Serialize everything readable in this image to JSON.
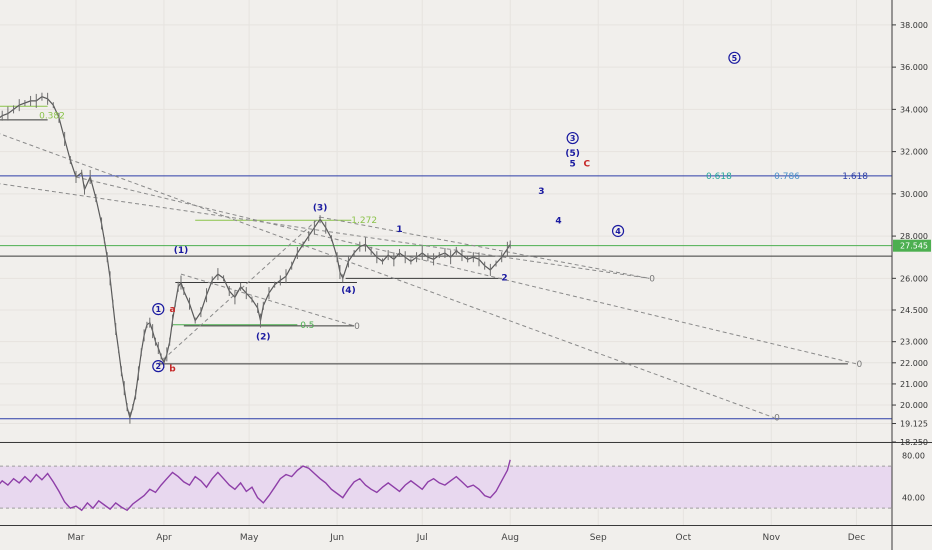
{
  "chart_data": {
    "type": "line",
    "title": "",
    "price_axis": {
      "ticks": [
        "38.000",
        "36.000",
        "34.000",
        "32.000",
        "30.000",
        "28.000",
        "26.000",
        "24.500",
        "23.000",
        "22.000",
        "21.000",
        "20.000",
        "19.125",
        "18.250"
      ],
      "current_price": "27.545",
      "ylim": [
        18.25,
        38.8
      ]
    },
    "rsi_axis": {
      "ticks": [
        "80.00",
        "40.00"
      ],
      "band": [
        30,
        70
      ],
      "ylim": [
        14,
        92
      ]
    },
    "time_axis": {
      "labels": [
        "Mar",
        "Apr",
        "May",
        "Jun",
        "Jul",
        "Aug",
        "Sep",
        "Oct",
        "Nov",
        "Dec"
      ],
      "label_days": [
        0,
        31,
        61,
        92,
        122,
        153,
        184,
        214,
        245,
        275
      ]
    },
    "price_series": [
      [
        -28,
        33.5
      ],
      [
        -26,
        33.7
      ],
      [
        -24,
        33.8
      ],
      [
        -22,
        34.0
      ],
      [
        -20,
        34.2
      ],
      [
        -18,
        34.3
      ],
      [
        -16,
        34.4
      ],
      [
        -14,
        34.4
      ],
      [
        -12,
        34.6
      ],
      [
        -10,
        34.5
      ],
      [
        -8,
        34.2
      ],
      [
        -6,
        33.6
      ],
      [
        -4,
        32.6
      ],
      [
        -2,
        31.6
      ],
      [
        0,
        30.8
      ],
      [
        2,
        31.0
      ],
      [
        3,
        30.2
      ],
      [
        5,
        30.8
      ],
      [
        7,
        29.8
      ],
      [
        9,
        28.6
      ],
      [
        10,
        27.8
      ],
      [
        11,
        27.0
      ],
      [
        12,
        26.0
      ],
      [
        13,
        24.8
      ],
      [
        14,
        23.6
      ],
      [
        15,
        22.6
      ],
      [
        16,
        21.6
      ],
      [
        17,
        20.8
      ],
      [
        18,
        19.9
      ],
      [
        19,
        19.4
      ],
      [
        20,
        19.9
      ],
      [
        21,
        20.5
      ],
      [
        22,
        21.5
      ],
      [
        23,
        22.5
      ],
      [
        24,
        23.3
      ],
      [
        25,
        23.8
      ],
      [
        26,
        23.9
      ],
      [
        27,
        23.5
      ],
      [
        28,
        23.0
      ],
      [
        29,
        22.7
      ],
      [
        30,
        22.3
      ],
      [
        31,
        22.0
      ],
      [
        32,
        22.4
      ],
      [
        33,
        23.0
      ],
      [
        34,
        24.0
      ],
      [
        35,
        24.8
      ],
      [
        36,
        25.6
      ],
      [
        37,
        25.8
      ],
      [
        38,
        25.4
      ],
      [
        40,
        24.8
      ],
      [
        42,
        24.0
      ],
      [
        44,
        24.4
      ],
      [
        46,
        25.2
      ],
      [
        48,
        25.9
      ],
      [
        50,
        26.2
      ],
      [
        52,
        26.0
      ],
      [
        54,
        25.4
      ],
      [
        56,
        25.1
      ],
      [
        58,
        25.6
      ],
      [
        60,
        25.3
      ],
      [
        62,
        25.0
      ],
      [
        64,
        24.6
      ],
      [
        65,
        24.0
      ],
      [
        66,
        24.7
      ],
      [
        68,
        25.3
      ],
      [
        70,
        25.7
      ],
      [
        72,
        25.9
      ],
      [
        74,
        26.1
      ],
      [
        76,
        26.6
      ],
      [
        78,
        27.2
      ],
      [
        80,
        27.6
      ],
      [
        82,
        28.0
      ],
      [
        84,
        28.4
      ],
      [
        86,
        28.8
      ],
      [
        88,
        28.4
      ],
      [
        90,
        27.9
      ],
      [
        92,
        27.0
      ],
      [
        93,
        26.3
      ],
      [
        94,
        26.0
      ],
      [
        96,
        26.8
      ],
      [
        98,
        27.2
      ],
      [
        100,
        27.5
      ],
      [
        102,
        27.6
      ],
      [
        104,
        27.3
      ],
      [
        106,
        27.0
      ],
      [
        108,
        26.8
      ],
      [
        110,
        27.1
      ],
      [
        112,
        26.9
      ],
      [
        114,
        27.2
      ],
      [
        116,
        27.0
      ],
      [
        118,
        26.8
      ],
      [
        120,
        27.0
      ],
      [
        122,
        27.2
      ],
      [
        124,
        27.0
      ],
      [
        126,
        26.9
      ],
      [
        128,
        27.1
      ],
      [
        130,
        27.2
      ],
      [
        132,
        27.0
      ],
      [
        134,
        27.3
      ],
      [
        136,
        27.1
      ],
      [
        138,
        26.9
      ],
      [
        140,
        27.0
      ],
      [
        142,
        26.9
      ],
      [
        144,
        26.6
      ],
      [
        146,
        26.4
      ],
      [
        148,
        26.7
      ],
      [
        150,
        27.0
      ],
      [
        152,
        27.4
      ],
      [
        153,
        27.6
      ]
    ],
    "rsi_series": [
      [
        -28,
        50
      ],
      [
        -26,
        56
      ],
      [
        -24,
        52
      ],
      [
        -22,
        58
      ],
      [
        -20,
        54
      ],
      [
        -18,
        60
      ],
      [
        -16,
        55
      ],
      [
        -14,
        62
      ],
      [
        -12,
        57
      ],
      [
        -10,
        63
      ],
      [
        -8,
        55
      ],
      [
        -6,
        46
      ],
      [
        -4,
        36
      ],
      [
        -2,
        30
      ],
      [
        0,
        32
      ],
      [
        2,
        28
      ],
      [
        4,
        35
      ],
      [
        6,
        30
      ],
      [
        8,
        37
      ],
      [
        10,
        33
      ],
      [
        12,
        29
      ],
      [
        14,
        35
      ],
      [
        16,
        31
      ],
      [
        18,
        28
      ],
      [
        20,
        34
      ],
      [
        22,
        38
      ],
      [
        24,
        42
      ],
      [
        26,
        48
      ],
      [
        28,
        45
      ],
      [
        30,
        52
      ],
      [
        32,
        58
      ],
      [
        34,
        64
      ],
      [
        36,
        60
      ],
      [
        38,
        55
      ],
      [
        40,
        52
      ],
      [
        42,
        60
      ],
      [
        44,
        56
      ],
      [
        46,
        50
      ],
      [
        48,
        58
      ],
      [
        50,
        64
      ],
      [
        52,
        58
      ],
      [
        54,
        52
      ],
      [
        56,
        48
      ],
      [
        58,
        54
      ],
      [
        60,
        46
      ],
      [
        62,
        50
      ],
      [
        64,
        40
      ],
      [
        66,
        35
      ],
      [
        68,
        42
      ],
      [
        70,
        50
      ],
      [
        72,
        58
      ],
      [
        74,
        62
      ],
      [
        76,
        60
      ],
      [
        78,
        66
      ],
      [
        80,
        70
      ],
      [
        82,
        68
      ],
      [
        84,
        63
      ],
      [
        86,
        58
      ],
      [
        88,
        54
      ],
      [
        90,
        48
      ],
      [
        92,
        44
      ],
      [
        94,
        40
      ],
      [
        96,
        48
      ],
      [
        98,
        55
      ],
      [
        100,
        58
      ],
      [
        102,
        52
      ],
      [
        104,
        48
      ],
      [
        106,
        45
      ],
      [
        108,
        50
      ],
      [
        110,
        54
      ],
      [
        112,
        50
      ],
      [
        114,
        46
      ],
      [
        116,
        52
      ],
      [
        118,
        56
      ],
      [
        120,
        52
      ],
      [
        122,
        48
      ],
      [
        124,
        55
      ],
      [
        126,
        58
      ],
      [
        128,
        54
      ],
      [
        130,
        52
      ],
      [
        132,
        56
      ],
      [
        134,
        60
      ],
      [
        136,
        55
      ],
      [
        138,
        50
      ],
      [
        140,
        52
      ],
      [
        142,
        48
      ],
      [
        144,
        42
      ],
      [
        146,
        40
      ],
      [
        148,
        46
      ],
      [
        150,
        56
      ],
      [
        152,
        66
      ],
      [
        153,
        76
      ]
    ],
    "horizontal_levels": [
      {
        "price": 30.85,
        "color": "#2c3ea8"
      },
      {
        "price": 27.05,
        "color": "#3a3a3a"
      },
      {
        "price": 27.55,
        "color": "#4caf50"
      },
      {
        "price": 19.35,
        "color": "#2c3ea8"
      }
    ],
    "fib_labels": [
      {
        "text": "0.618",
        "day": 222,
        "price": 30.85,
        "color": "#26a69a"
      },
      {
        "text": "0.786",
        "day": 246,
        "price": 30.85,
        "color": "#4a90c8"
      },
      {
        "text": "1.618",
        "day": 270,
        "price": 30.85,
        "color": "#2c3ea8"
      },
      {
        "text": "0.382",
        "day": -13,
        "price": 33.7,
        "color": "#8bc34a"
      },
      {
        "text": "1.272",
        "day": 97,
        "price": 28.75,
        "color": "#8bc34a"
      },
      {
        "text": "0.5",
        "day": 79,
        "price": 23.8,
        "color": "#4caf50"
      }
    ],
    "zero_labels": [
      {
        "text": "0",
        "day": 202,
        "price": 26.0
      },
      {
        "text": "0",
        "day": 98,
        "price": 23.75
      },
      {
        "text": "0",
        "day": 275,
        "price": 21.95
      },
      {
        "text": "0",
        "day": 246,
        "price": 19.4
      }
    ],
    "wave_labels": [
      {
        "text": "1",
        "day": 29,
        "price": 24.4,
        "color": "#1a1aa0",
        "circled": true
      },
      {
        "text": "a",
        "day": 34,
        "price": 24.4,
        "color": "#c62828",
        "circled": false
      },
      {
        "text": "2",
        "day": 29,
        "price": 21.7,
        "color": "#1a1aa0",
        "circled": true
      },
      {
        "text": "b",
        "day": 34,
        "price": 21.6,
        "color": "#c62828",
        "circled": false
      },
      {
        "text": "(1)",
        "day": 37,
        "price": 27.2,
        "color": "#1a1aa0",
        "circled": false
      },
      {
        "text": "(2)",
        "day": 66,
        "price": 23.1,
        "color": "#1a1aa0",
        "circled": false
      },
      {
        "text": "(3)",
        "day": 86,
        "price": 29.2,
        "color": "#1a1aa0",
        "circled": false
      },
      {
        "text": "(4)",
        "day": 96,
        "price": 25.3,
        "color": "#1a1aa0",
        "circled": false
      },
      {
        "text": "1",
        "day": 114,
        "price": 28.2,
        "color": "#1a1aa0",
        "circled": false
      },
      {
        "text": "2",
        "day": 151,
        "price": 25.9,
        "color": "#1a1aa0",
        "circled": false
      },
      {
        "text": "3",
        "day": 164,
        "price": 30.0,
        "color": "#1a1aa0",
        "circled": false
      },
      {
        "text": "4",
        "day": 170,
        "price": 28.6,
        "color": "#1a1aa0",
        "circled": false
      },
      {
        "text": "5",
        "day": 175,
        "price": 31.3,
        "color": "#1a1aa0",
        "circled": false
      },
      {
        "text": "(5)",
        "day": 175,
        "price": 31.8,
        "color": "#1a1aa0",
        "circled": false
      },
      {
        "text": "3",
        "day": 175,
        "price": 32.5,
        "color": "#1a1aa0",
        "circled": true
      },
      {
        "text": "C",
        "day": 180,
        "price": 31.3,
        "color": "#c62828",
        "circled": false
      },
      {
        "text": "4",
        "day": 191,
        "price": 28.1,
        "color": "#1a1aa0",
        "circled": true
      },
      {
        "text": "5",
        "day": 232,
        "price": 36.3,
        "color": "#1a1aa0",
        "circled": true
      }
    ]
  }
}
